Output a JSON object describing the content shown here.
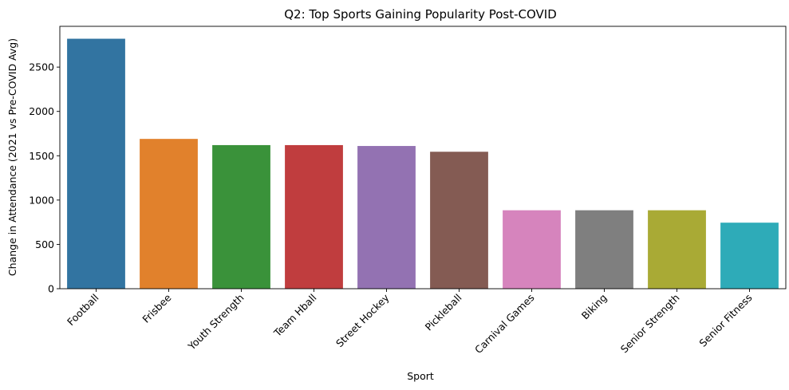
{
  "chart_data": {
    "type": "bar",
    "title": "Q2: Top Sports Gaining Popularity Post-COVID",
    "xlabel": "Sport",
    "ylabel": "Change in Attendance (2021 vs Pre-COVID Avg)",
    "categories": [
      "Football",
      "Frisbee",
      "Youth Strength",
      "Team Hball",
      "Street Hockey",
      "Pickleball",
      "Carnival Games",
      "Biking",
      "Senior Strength",
      "Senior Fitness"
    ],
    "values": [
      2820,
      1690,
      1620,
      1620,
      1610,
      1545,
      885,
      885,
      885,
      745
    ],
    "colors": [
      "#3274a1",
      "#e1812c",
      "#3a923a",
      "#c03d3e",
      "#9372b2",
      "#845b53",
      "#d684bd",
      "#7f7f7f",
      "#a9aa35",
      "#2eabb8"
    ],
    "ylim": [
      0,
      2960
    ],
    "yticks": [
      0,
      500,
      1000,
      1500,
      2000,
      2500
    ],
    "ytick_labels": [
      "0",
      "500",
      "1000",
      "1500",
      "2000",
      "2500"
    ],
    "grid": false,
    "legend": "none"
  }
}
